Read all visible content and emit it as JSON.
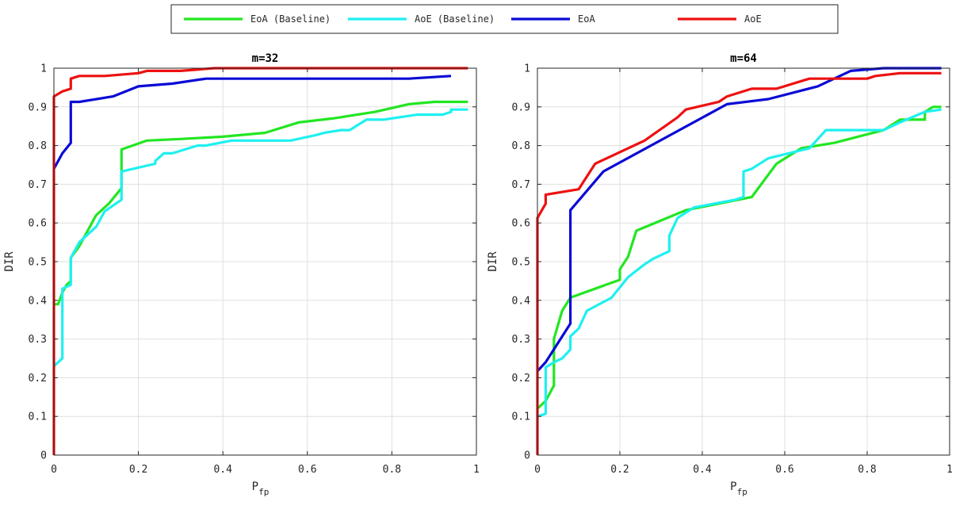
{
  "legend": {
    "entries": [
      {
        "label": "EoA (Baseline)",
        "color": "#22e622"
      },
      {
        "label": "AoE (Baseline)",
        "color": "#1ff0f0"
      },
      {
        "label": "EoA",
        "color": "#0a0ad6"
      },
      {
        "label": "AoE",
        "color": "#ee1010"
      }
    ]
  },
  "chart_data": [
    {
      "type": "line",
      "title": "m=32",
      "xlabel": "P",
      "xlabel_sub": "fp",
      "ylabel": "DIR",
      "xlim": [
        0,
        1
      ],
      "ylim": [
        0,
        1
      ],
      "x_ticks": [
        "0",
        "0.2",
        "0.4",
        "0.6",
        "0.8",
        "1"
      ],
      "y_ticks": [
        "0",
        "0.1",
        "0.2",
        "0.3",
        "0.4",
        "0.5",
        "0.6",
        "0.7",
        "0.8",
        "0.9",
        "1"
      ],
      "grid": true,
      "series": [
        {
          "name": "EoA (Baseline)",
          "color": "#22e622",
          "points": [
            [
              0,
              0.39
            ],
            [
              0.01,
              0.39
            ],
            [
              0.02,
              0.42
            ],
            [
              0.03,
              0.44
            ],
            [
              0.04,
              0.45
            ],
            [
              0.04,
              0.51
            ],
            [
              0.06,
              0.54
            ],
            [
              0.08,
              0.58
            ],
            [
              0.1,
              0.62
            ],
            [
              0.13,
              0.65
            ],
            [
              0.16,
              0.69
            ],
            [
              0.16,
              0.79
            ],
            [
              0.22,
              0.813
            ],
            [
              0.3,
              0.817
            ],
            [
              0.4,
              0.823
            ],
            [
              0.5,
              0.833
            ],
            [
              0.58,
              0.86
            ],
            [
              0.66,
              0.87
            ],
            [
              0.76,
              0.887
            ],
            [
              0.84,
              0.907
            ],
            [
              0.9,
              0.913
            ],
            [
              0.98,
              0.913
            ]
          ]
        },
        {
          "name": "AoE (Baseline)",
          "color": "#1ff0f0",
          "points": [
            [
              0,
              0.23
            ],
            [
              0.01,
              0.24
            ],
            [
              0.02,
              0.25
            ],
            [
              0.02,
              0.43
            ],
            [
              0.04,
              0.44
            ],
            [
              0.04,
              0.51
            ],
            [
              0.06,
              0.55
            ],
            [
              0.1,
              0.59
            ],
            [
              0.12,
              0.63
            ],
            [
              0.16,
              0.66
            ],
            [
              0.16,
              0.733
            ],
            [
              0.24,
              0.753
            ],
            [
              0.24,
              0.76
            ],
            [
              0.26,
              0.78
            ],
            [
              0.28,
              0.78
            ],
            [
              0.34,
              0.8
            ],
            [
              0.36,
              0.8
            ],
            [
              0.42,
              0.813
            ],
            [
              0.56,
              0.813
            ],
            [
              0.62,
              0.827
            ],
            [
              0.64,
              0.833
            ],
            [
              0.68,
              0.84
            ],
            [
              0.7,
              0.84
            ],
            [
              0.74,
              0.867
            ],
            [
              0.78,
              0.867
            ],
            [
              0.86,
              0.88
            ],
            [
              0.92,
              0.88
            ],
            [
              0.94,
              0.887
            ],
            [
              0.94,
              0.893
            ],
            [
              0.98,
              0.893
            ]
          ]
        },
        {
          "name": "EoA",
          "color": "#0a0ad6",
          "points": [
            [
              0,
              0.74
            ],
            [
              0.02,
              0.78
            ],
            [
              0.04,
              0.807
            ],
            [
              0.04,
              0.913
            ],
            [
              0.06,
              0.913
            ],
            [
              0.14,
              0.927
            ],
            [
              0.2,
              0.953
            ],
            [
              0.28,
              0.96
            ],
            [
              0.36,
              0.973
            ],
            [
              0.84,
              0.973
            ],
            [
              0.94,
              0.98
            ]
          ]
        },
        {
          "name": "AoE",
          "color": "#ee1010",
          "points": [
            [
              0,
              0
            ],
            [
              0,
              0.927
            ],
            [
              0.02,
              0.94
            ],
            [
              0.04,
              0.947
            ],
            [
              0.04,
              0.973
            ],
            [
              0.06,
              0.98
            ],
            [
              0.12,
              0.98
            ],
            [
              0.2,
              0.987
            ],
            [
              0.22,
              0.993
            ],
            [
              0.3,
              0.993
            ],
            [
              0.38,
              1
            ],
            [
              0.98,
              1
            ]
          ]
        }
      ]
    },
    {
      "type": "line",
      "title": "m=64",
      "xlabel": "P",
      "xlabel_sub": "fp",
      "ylabel": "DIR",
      "xlim": [
        0,
        1
      ],
      "ylim": [
        0,
        1
      ],
      "x_ticks": [
        "0",
        "0.2",
        "0.4",
        "0.6",
        "0.8",
        "1"
      ],
      "y_ticks": [
        "0",
        "0.1",
        "0.2",
        "0.3",
        "0.4",
        "0.5",
        "0.6",
        "0.7",
        "0.8",
        "0.9",
        "1"
      ],
      "grid": true,
      "series": [
        {
          "name": "EoA (Baseline)",
          "color": "#22e622",
          "points": [
            [
              0,
              0.12
            ],
            [
              0.02,
              0.14
            ],
            [
              0.04,
              0.18
            ],
            [
              0.04,
              0.3
            ],
            [
              0.06,
              0.373
            ],
            [
              0.08,
              0.407
            ],
            [
              0.2,
              0.453
            ],
            [
              0.2,
              0.48
            ],
            [
              0.22,
              0.513
            ],
            [
              0.24,
              0.58
            ],
            [
              0.36,
              0.633
            ],
            [
              0.52,
              0.667
            ],
            [
              0.58,
              0.753
            ],
            [
              0.64,
              0.793
            ],
            [
              0.72,
              0.807
            ],
            [
              0.84,
              0.84
            ],
            [
              0.88,
              0.867
            ],
            [
              0.94,
              0.867
            ],
            [
              0.94,
              0.887
            ],
            [
              0.96,
              0.9
            ],
            [
              0.98,
              0.9
            ]
          ]
        },
        {
          "name": "AoE (Baseline)",
          "color": "#1ff0f0",
          "points": [
            [
              0,
              0.1
            ],
            [
              0.02,
              0.107
            ],
            [
              0.02,
              0.227
            ],
            [
              0.04,
              0.24
            ],
            [
              0.06,
              0.25
            ],
            [
              0.08,
              0.273
            ],
            [
              0.08,
              0.307
            ],
            [
              0.1,
              0.327
            ],
            [
              0.12,
              0.373
            ],
            [
              0.18,
              0.407
            ],
            [
              0.22,
              0.46
            ],
            [
              0.26,
              0.493
            ],
            [
              0.28,
              0.507
            ],
            [
              0.32,
              0.527
            ],
            [
              0.32,
              0.567
            ],
            [
              0.34,
              0.613
            ],
            [
              0.38,
              0.64
            ],
            [
              0.48,
              0.66
            ],
            [
              0.5,
              0.667
            ],
            [
              0.5,
              0.733
            ],
            [
              0.52,
              0.74
            ],
            [
              0.56,
              0.767
            ],
            [
              0.66,
              0.793
            ],
            [
              0.7,
              0.84
            ],
            [
              0.84,
              0.84
            ],
            [
              0.88,
              0.86
            ],
            [
              0.94,
              0.887
            ],
            [
              0.98,
              0.893
            ]
          ]
        },
        {
          "name": "EoA",
          "color": "#0a0ad6",
          "points": [
            [
              0,
              0.217
            ],
            [
              0.02,
              0.24
            ],
            [
              0.08,
              0.34
            ],
            [
              0.08,
              0.633
            ],
            [
              0.16,
              0.733
            ],
            [
              0.46,
              0.907
            ],
            [
              0.56,
              0.92
            ],
            [
              0.68,
              0.953
            ],
            [
              0.76,
              0.993
            ],
            [
              0.84,
              1
            ],
            [
              0.98,
              1
            ]
          ]
        },
        {
          "name": "AoE",
          "color": "#ee1010",
          "points": [
            [
              0,
              0
            ],
            [
              0,
              0.613
            ],
            [
              0.02,
              0.65
            ],
            [
              0.02,
              0.673
            ],
            [
              0.1,
              0.687
            ],
            [
              0.14,
              0.753
            ],
            [
              0.26,
              0.813
            ],
            [
              0.34,
              0.873
            ],
            [
              0.36,
              0.893
            ],
            [
              0.44,
              0.913
            ],
            [
              0.46,
              0.927
            ],
            [
              0.52,
              0.947
            ],
            [
              0.58,
              0.947
            ],
            [
              0.66,
              0.973
            ],
            [
              0.8,
              0.973
            ],
            [
              0.82,
              0.98
            ],
            [
              0.88,
              0.987
            ],
            [
              0.98,
              0.987
            ]
          ]
        }
      ]
    }
  ]
}
